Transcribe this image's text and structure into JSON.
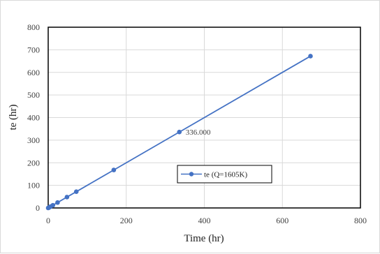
{
  "chart_data": {
    "type": "line",
    "title": "",
    "xlabel": "Time (hr)",
    "ylabel": "te (hr)",
    "xlim": [
      0,
      800
    ],
    "ylim": [
      0,
      800
    ],
    "xticks": [
      0,
      200,
      400,
      600,
      800
    ],
    "yticks": [
      0,
      100,
      200,
      300,
      400,
      500,
      600,
      700,
      800
    ],
    "grid": true,
    "legend_placement": "lower-right",
    "series": [
      {
        "name": "te (Q=1605K)",
        "color": "#4472c4",
        "marker": "circle",
        "points": [
          {
            "x": 0,
            "y": 0
          },
          {
            "x": 1,
            "y": 1
          },
          {
            "x": 3,
            "y": 3
          },
          {
            "x": 6,
            "y": 6
          },
          {
            "x": 12,
            "y": 12
          },
          {
            "x": 24,
            "y": 24
          },
          {
            "x": 48,
            "y": 48
          },
          {
            "x": 72,
            "y": 72
          },
          {
            "x": 168,
            "y": 168
          },
          {
            "x": 336,
            "y": 336
          },
          {
            "x": 672,
            "y": 672
          }
        ]
      }
    ],
    "annotations": [
      {
        "text": "336.000",
        "x": 336,
        "y": 336
      }
    ]
  }
}
